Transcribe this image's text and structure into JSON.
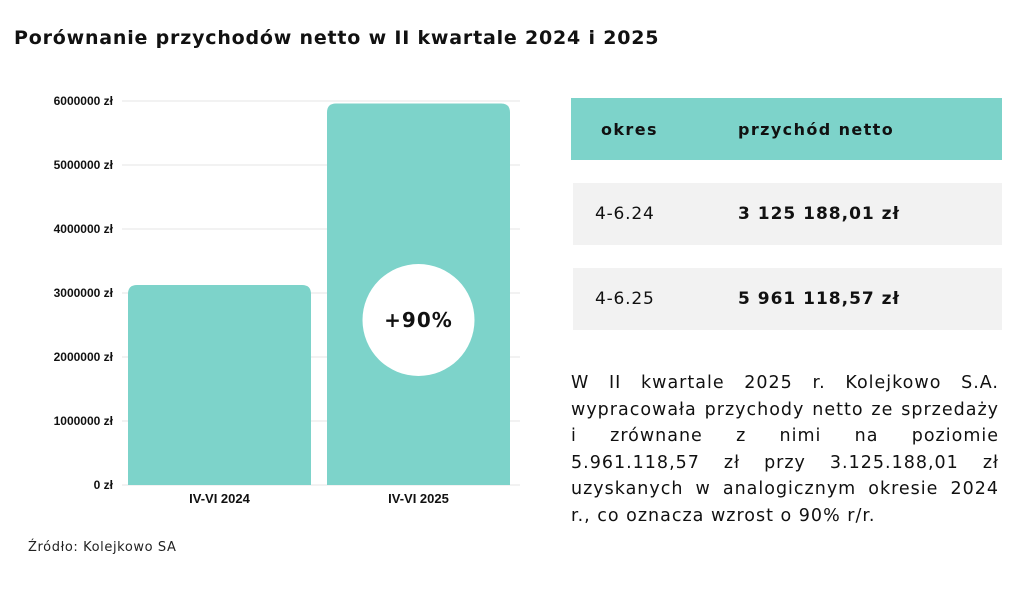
{
  "title": "Porównanie przychodów netto w II kwartale 2024 i 2025",
  "source": "Źródło: Kolejkowo SA",
  "colors": {
    "bar": "#7dd3ca",
    "header": "#7dd3ca",
    "row": "#f2f2f2",
    "grid": "#e6e6e6"
  },
  "chart_data": {
    "type": "bar",
    "categories": [
      "IV-VI 2024",
      "IV-VI 2025"
    ],
    "values": [
      3125188.01,
      5961118.57
    ],
    "ylim": [
      0,
      6000000
    ],
    "yticks": [
      "0 zł",
      "1000000 zł",
      "2000000 zł",
      "3000000 zł",
      "4000000 zł",
      "5000000 zł",
      "6000000 zł"
    ],
    "annotation": "+90%",
    "grid": true
  },
  "table": {
    "headers": [
      "okres",
      "przychód netto"
    ],
    "rows": [
      [
        "4-6.24",
        "3 125 188,01 zł"
      ],
      [
        "4-6.25",
        "5 961 118,57 zł"
      ]
    ]
  },
  "description": "W II kwartale 2025 r. Kolejkowo S.A. wypracowała przychody netto ze sprzedaży i zrównane z nimi na poziomie 5.961.118,57 zł przy 3.125.188,01 zł uzyskanych w analogicznym okresie 2024 r., co oznacza wzrost o 90% r/r."
}
